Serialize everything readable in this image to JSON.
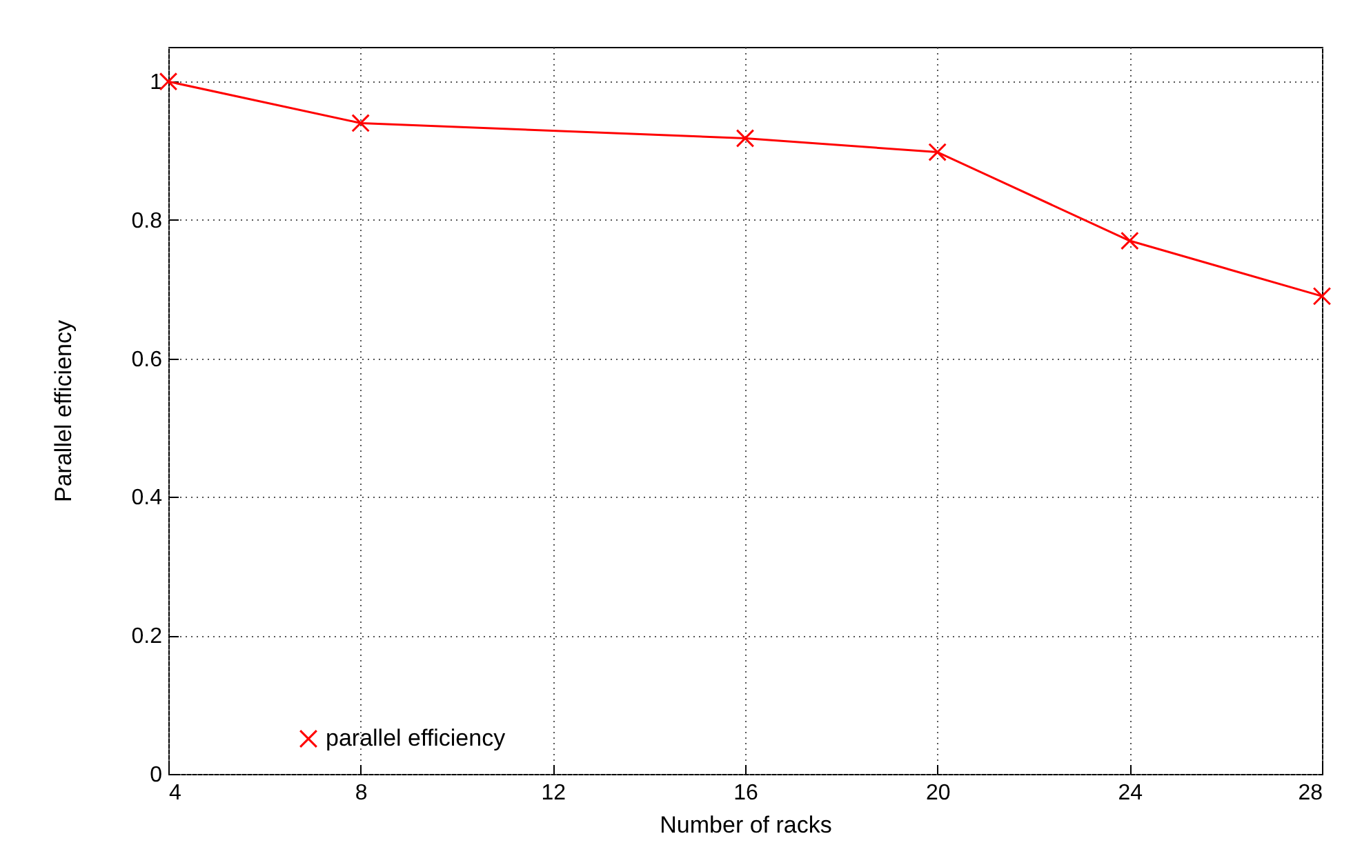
{
  "chart_data": {
    "type": "line",
    "xlabel": "Number of racks",
    "ylabel": "Parallel efficiency",
    "x": [
      4,
      8,
      16,
      20,
      24,
      28
    ],
    "series": [
      {
        "name": "parallel efficiency",
        "color": "#ff0000",
        "values": [
          1,
          0.94,
          0.918,
          0.898,
          0.77,
          0.69
        ]
      }
    ],
    "xlim": [
      4,
      28
    ],
    "xticks": [
      4,
      8,
      12,
      16,
      20,
      24,
      28
    ],
    "ylim": [
      0,
      1.05
    ],
    "yticks": [
      0,
      0.2,
      0.4,
      0.6,
      0.8,
      1
    ],
    "grid": true,
    "legend": "bottom left",
    "marker": "cross",
    "line_style": "solid"
  }
}
